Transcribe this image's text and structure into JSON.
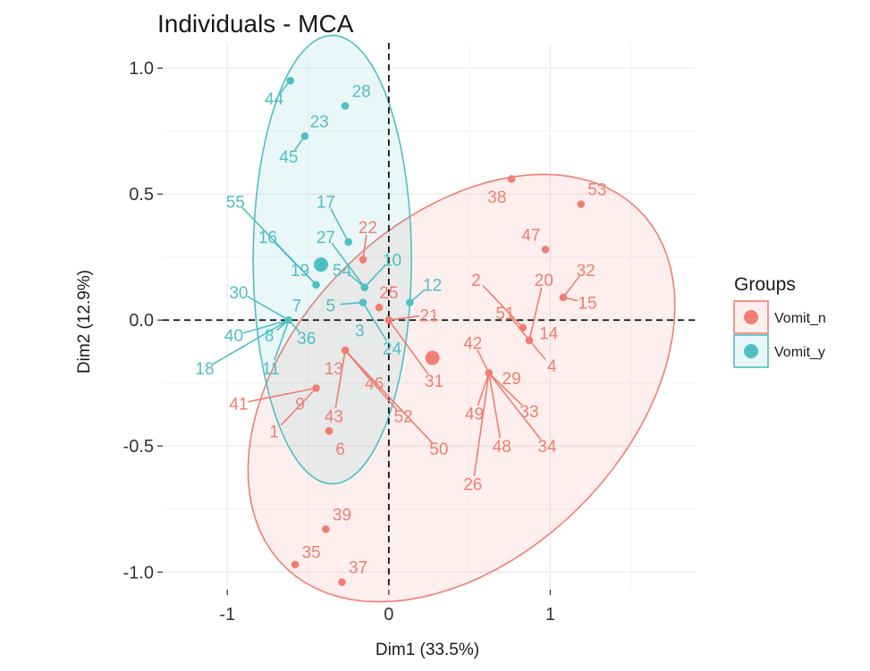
{
  "chart_data": {
    "type": "scatter",
    "title": "Individuals - MCA",
    "xlabel": "Dim1 (33.5%)",
    "ylabel": "Dim2 (12.9%)",
    "xlim": [
      -1.4,
      1.9
    ],
    "ylim": [
      -1.07,
      1.1
    ],
    "x_ticks": [
      -1,
      0,
      1
    ],
    "y_ticks": [
      1.0,
      0.5,
      0.0,
      -0.5,
      -1.0
    ],
    "x_tick_labels": [
      "-1",
      "0",
      "1"
    ],
    "y_tick_labels": [
      "1.0",
      "0.5",
      "0.0",
      "-0.5",
      "-1.0"
    ],
    "grid": true,
    "reference_lines": {
      "x": 0,
      "y": 0,
      "style": "dashed"
    },
    "legend_position": "right",
    "legend_title": "Groups",
    "series": [
      {
        "name": "Vomit_n",
        "color": "#F07E72",
        "centroid": {
          "x": 0.27,
          "y": -0.15
        },
        "ellipse": {
          "cx": 0.45,
          "cy": -0.27,
          "rx": 1.38,
          "ry": 0.75,
          "angle_deg": 20
        },
        "points": [
          {
            "id": "1",
            "x": -0.45,
            "y": -0.27
          },
          {
            "id": "2",
            "x": 0.83,
            "y": -0.03
          },
          {
            "id": "4",
            "x": 0.87,
            "y": -0.08
          },
          {
            "id": "6",
            "x": -0.37,
            "y": -0.44
          },
          {
            "id": "9",
            "x": -0.45,
            "y": -0.27
          },
          {
            "id": "13",
            "x": -0.27,
            "y": -0.12
          },
          {
            "id": "14",
            "x": 0.87,
            "y": -0.08
          },
          {
            "id": "15",
            "x": 1.08,
            "y": 0.09
          },
          {
            "id": "20",
            "x": 0.87,
            "y": -0.08
          },
          {
            "id": "21",
            "x": 0.0,
            "y": 0.0
          },
          {
            "id": "22",
            "x": -0.16,
            "y": 0.24
          },
          {
            "id": "25",
            "x": -0.06,
            "y": 0.05
          },
          {
            "id": "26",
            "x": 0.62,
            "y": -0.21
          },
          {
            "id": "29",
            "x": 0.62,
            "y": -0.21
          },
          {
            "id": "31",
            "x": 0.0,
            "y": 0.0
          },
          {
            "id": "32",
            "x": 1.08,
            "y": 0.09
          },
          {
            "id": "33",
            "x": 0.62,
            "y": -0.21
          },
          {
            "id": "34",
            "x": 0.62,
            "y": -0.21
          },
          {
            "id": "35",
            "x": -0.58,
            "y": -0.97
          },
          {
            "id": "37",
            "x": -0.29,
            "y": -1.04
          },
          {
            "id": "38",
            "x": 0.76,
            "y": 0.56
          },
          {
            "id": "39",
            "x": -0.39,
            "y": -0.83
          },
          {
            "id": "41",
            "x": -0.45,
            "y": -0.27
          },
          {
            "id": "42",
            "x": 0.62,
            "y": -0.21
          },
          {
            "id": "43",
            "x": -0.27,
            "y": -0.12
          },
          {
            "id": "46",
            "x": -0.27,
            "y": -0.12
          },
          {
            "id": "47",
            "x": 0.97,
            "y": 0.28
          },
          {
            "id": "48",
            "x": 0.62,
            "y": -0.21
          },
          {
            "id": "49",
            "x": 0.62,
            "y": -0.21
          },
          {
            "id": "50",
            "x": -0.27,
            "y": -0.12
          },
          {
            "id": "51",
            "x": 0.87,
            "y": -0.08
          },
          {
            "id": "52",
            "x": -0.27,
            "y": -0.12
          },
          {
            "id": "53",
            "x": 1.19,
            "y": 0.46
          }
        ]
      },
      {
        "name": "Vomit_y",
        "color": "#4FBFC4",
        "centroid": {
          "x": -0.42,
          "y": 0.22
        },
        "ellipse": {
          "cx": -0.35,
          "cy": 0.24,
          "rx": 0.49,
          "ry": 0.89,
          "angle_deg": 0
        },
        "points": [
          {
            "id": "5",
            "x": -0.16,
            "y": 0.07
          },
          {
            "id": "7",
            "x": -0.62,
            "y": 0.0
          },
          {
            "id": "8",
            "x": -0.62,
            "y": 0.0
          },
          {
            "id": "10",
            "x": -0.15,
            "y": 0.13
          },
          {
            "id": "11",
            "x": -0.62,
            "y": 0.0
          },
          {
            "id": "12",
            "x": 0.13,
            "y": 0.07
          },
          {
            "id": "16",
            "x": -0.45,
            "y": 0.14
          },
          {
            "id": "17",
            "x": -0.25,
            "y": 0.31
          },
          {
            "id": "18",
            "x": -0.62,
            "y": 0.0
          },
          {
            "id": "19",
            "x": -0.45,
            "y": 0.14
          },
          {
            "id": "23",
            "x": -0.52,
            "y": 0.73
          },
          {
            "id": "24",
            "x": -0.16,
            "y": 0.07
          },
          {
            "id": "27",
            "x": -0.15,
            "y": 0.13
          },
          {
            "id": "28",
            "x": -0.27,
            "y": 0.85
          },
          {
            "id": "30",
            "x": -0.62,
            "y": 0.0
          },
          {
            "id": "36",
            "x": -0.62,
            "y": 0.0
          },
          {
            "id": "40",
            "x": -0.62,
            "y": 0.0
          },
          {
            "id": "44",
            "x": -0.61,
            "y": 0.95
          },
          {
            "id": "45",
            "x": -0.52,
            "y": 0.73
          },
          {
            "id": "54",
            "x": -0.15,
            "y": 0.13
          },
          {
            "id": "55",
            "x": -0.45,
            "y": 0.14
          }
        ]
      }
    ],
    "point_labels": [
      {
        "id": "44",
        "series": 1,
        "x": -0.71,
        "y": 0.88
      },
      {
        "id": "28",
        "series": 1,
        "x": -0.17,
        "y": 0.91
      },
      {
        "id": "23",
        "series": 1,
        "x": -0.43,
        "y": 0.79
      },
      {
        "id": "45",
        "series": 1,
        "x": -0.62,
        "y": 0.65
      },
      {
        "id": "55",
        "series": 1,
        "x": -0.95,
        "y": 0.47
      },
      {
        "id": "17",
        "series": 1,
        "x": -0.39,
        "y": 0.47
      },
      {
        "id": "27",
        "series": 1,
        "x": -0.39,
        "y": 0.33
      },
      {
        "id": "16",
        "series": 1,
        "x": -0.75,
        "y": 0.33
      },
      {
        "id": "54",
        "series": 1,
        "x": -0.29,
        "y": 0.2
      },
      {
        "id": "10",
        "series": 1,
        "x": 0.02,
        "y": 0.24
      },
      {
        "id": "19",
        "series": 1,
        "x": -0.55,
        "y": 0.2
      },
      {
        "id": "12",
        "series": 1,
        "x": 0.27,
        "y": 0.14
      },
      {
        "id": "30",
        "series": 1,
        "x": -0.93,
        "y": 0.11
      },
      {
        "id": "7",
        "series": 1,
        "x": -0.57,
        "y": 0.06
      },
      {
        "id": "5",
        "series": 1,
        "x": -0.36,
        "y": 0.06
      },
      {
        "id": "40",
        "series": 1,
        "x": -0.96,
        "y": -0.06
      },
      {
        "id": "8",
        "series": 1,
        "x": -0.74,
        "y": -0.06
      },
      {
        "id": "36",
        "series": 1,
        "x": -0.51,
        "y": -0.07
      },
      {
        "id": "3",
        "series": 1,
        "x": -0.18,
        "y": -0.04
      },
      {
        "id": "24",
        "series": 1,
        "x": 0.02,
        "y": -0.11
      },
      {
        "id": "18",
        "series": 1,
        "x": -1.14,
        "y": -0.19
      },
      {
        "id": "11",
        "series": 1,
        "x": -0.73,
        "y": -0.19
      },
      {
        "id": "22",
        "series": 0,
        "x": -0.13,
        "y": 0.37
      },
      {
        "id": "38",
        "series": 0,
        "x": 0.67,
        "y": 0.49
      },
      {
        "id": "53",
        "series": 0,
        "x": 1.29,
        "y": 0.52
      },
      {
        "id": "47",
        "series": 0,
        "x": 0.88,
        "y": 0.34
      },
      {
        "id": "2",
        "series": 0,
        "x": 0.54,
        "y": 0.16
      },
      {
        "id": "20",
        "series": 0,
        "x": 0.96,
        "y": 0.16
      },
      {
        "id": "32",
        "series": 0,
        "x": 1.22,
        "y": 0.2
      },
      {
        "id": "25",
        "series": 0,
        "x": 0.0,
        "y": 0.11
      },
      {
        "id": "15",
        "series": 0,
        "x": 1.23,
        "y": 0.07
      },
      {
        "id": "21",
        "series": 0,
        "x": 0.25,
        "y": 0.02
      },
      {
        "id": "51",
        "series": 0,
        "x": 0.72,
        "y": 0.03
      },
      {
        "id": "14",
        "series": 0,
        "x": 0.99,
        "y": -0.05
      },
      {
        "id": "42",
        "series": 0,
        "x": 0.52,
        "y": -0.09
      },
      {
        "id": "4",
        "series": 0,
        "x": 1.01,
        "y": -0.18
      },
      {
        "id": "13",
        "series": 0,
        "x": -0.34,
        "y": -0.19
      },
      {
        "id": "29",
        "series": 0,
        "x": 0.76,
        "y": -0.23
      },
      {
        "id": "31",
        "series": 0,
        "x": 0.28,
        "y": -0.24
      },
      {
        "id": "46",
        "series": 0,
        "x": -0.09,
        "y": -0.25
      },
      {
        "id": "41",
        "series": 0,
        "x": -0.93,
        "y": -0.33
      },
      {
        "id": "9",
        "series": 0,
        "x": -0.55,
        "y": -0.33
      },
      {
        "id": "33",
        "series": 0,
        "x": 0.87,
        "y": -0.36
      },
      {
        "id": "49",
        "series": 0,
        "x": 0.53,
        "y": -0.37
      },
      {
        "id": "43",
        "series": 0,
        "x": -0.34,
        "y": -0.38
      },
      {
        "id": "52",
        "series": 0,
        "x": 0.09,
        "y": -0.38
      },
      {
        "id": "1",
        "series": 0,
        "x": -0.71,
        "y": -0.44
      },
      {
        "id": "48",
        "series": 0,
        "x": 0.7,
        "y": -0.5
      },
      {
        "id": "34",
        "series": 0,
        "x": 0.98,
        "y": -0.5
      },
      {
        "id": "6",
        "series": 0,
        "x": -0.3,
        "y": -0.51
      },
      {
        "id": "50",
        "series": 0,
        "x": 0.31,
        "y": -0.51
      },
      {
        "id": "26",
        "series": 0,
        "x": 0.52,
        "y": -0.65
      },
      {
        "id": "39",
        "series": 0,
        "x": -0.29,
        "y": -0.77
      },
      {
        "id": "35",
        "series": 0,
        "x": -0.48,
        "y": -0.92
      },
      {
        "id": "37",
        "series": 0,
        "x": -0.19,
        "y": -0.98
      }
    ]
  }
}
